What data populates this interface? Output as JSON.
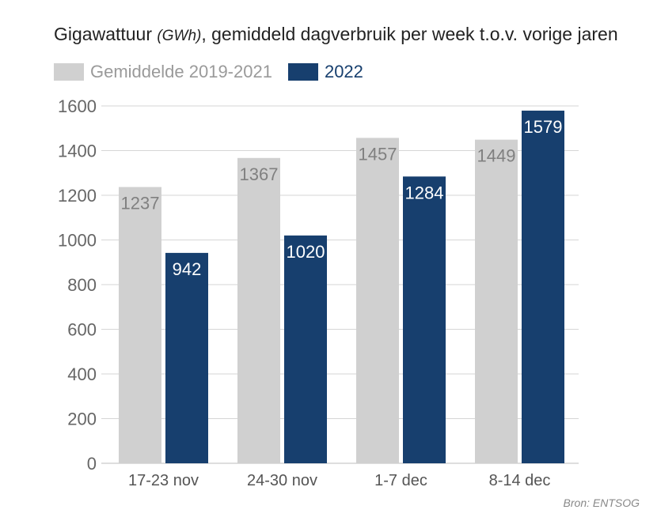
{
  "chart_data": {
    "type": "bar",
    "title_main": "Gigawattuur ",
    "title_unit": "(GWh)",
    "title_rest": ", gemiddeld dagverbruik per week t.o.v. vorige jaren",
    "categories": [
      "17-23 nov",
      "24-30 nov",
      "1-7 dec",
      "8-14 dec"
    ],
    "series": [
      {
        "name": "Gemiddelde 2019-2021",
        "values": [
          1237,
          1367,
          1457,
          1449
        ],
        "color": "#d0d0d0",
        "label_color": "#808080"
      },
      {
        "name": "2022",
        "values": [
          942,
          1020,
          1284,
          1579
        ],
        "color": "#173f6e",
        "label_color": "#ffffff"
      }
    ],
    "ylim": [
      0,
      1600
    ],
    "yticks": [
      "0",
      "200",
      "400",
      "600",
      "800",
      "1000",
      "1200",
      "1400",
      "1600"
    ],
    "grid": true,
    "legend": "top-left",
    "source": "Bron: ENTSOG"
  }
}
